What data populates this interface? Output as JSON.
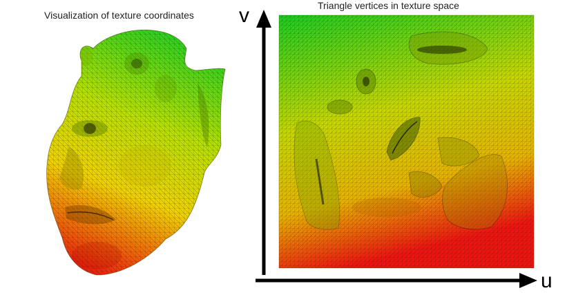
{
  "left_panel": {
    "caption": "Visualization of texture coordinates",
    "illustration": "head-mesh"
  },
  "right_panel": {
    "caption": "Triangle vertices in texture space",
    "illustration": "uv-mesh-square",
    "axis_u": "u",
    "axis_v": "v"
  },
  "colors": {
    "top": "#22d022",
    "middle": "#e6e600",
    "bottom": "#ee1a10",
    "mesh_line": "#1a1a00",
    "axis": "#000000"
  }
}
